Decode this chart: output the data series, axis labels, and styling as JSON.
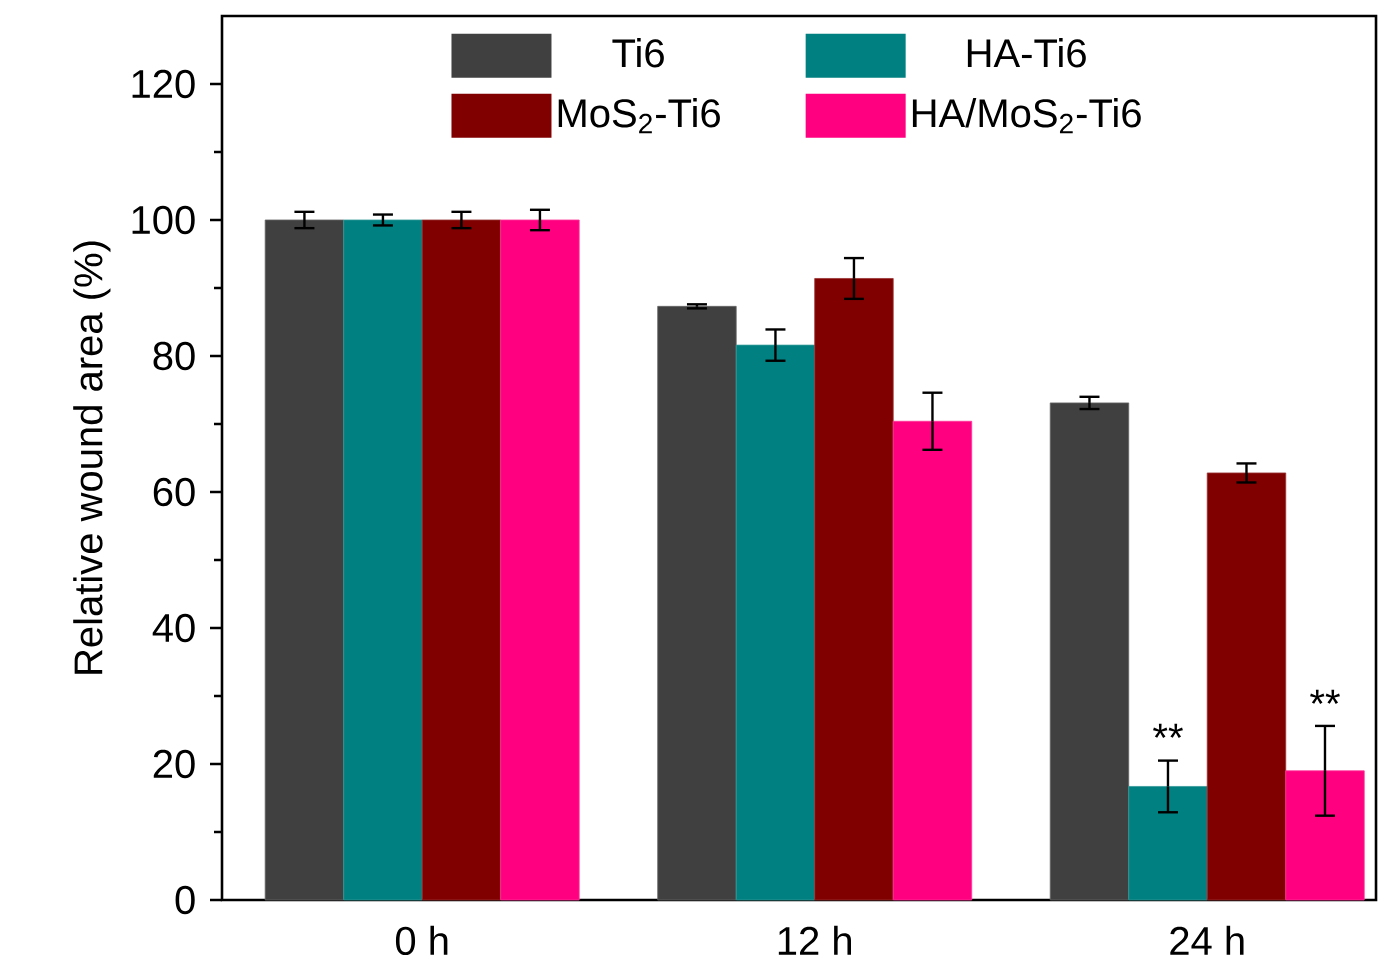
{
  "chart_data": {
    "type": "bar",
    "ylabel": "Relative wound area (%)",
    "categories": [
      "0 h",
      "12 h",
      "24 h"
    ],
    "series": [
      {
        "name": "Ti6",
        "color": "#404040",
        "values": [
          100,
          87.3,
          73.1
        ],
        "errors": [
          1.2,
          0.3,
          0.9
        ]
      },
      {
        "name": "HA-Ti6",
        "color": "#008080",
        "values": [
          100,
          81.6,
          16.7
        ],
        "errors": [
          0.8,
          2.3,
          3.8
        ]
      },
      {
        "name": "MoS$_{2}$-Ti6",
        "color": "#800000",
        "values": [
          100,
          91.4,
          62.8
        ],
        "errors": [
          1.2,
          3.0,
          1.4
        ]
      },
      {
        "name": "HA/MoS$_{2}$-Ti6",
        "color": "#ff0080",
        "values": [
          100,
          70.4,
          19.0
        ],
        "errors": [
          1.5,
          4.2,
          6.6
        ]
      }
    ],
    "ylim": [
      0,
      130
    ],
    "yticks": [
      0,
      20,
      40,
      60,
      80,
      100,
      120
    ],
    "legend": "top",
    "grid": false,
    "annotations": [
      {
        "text": "**",
        "x": "24 h",
        "y": 21.5
      },
      {
        "text": "**",
        "x": "24 h",
        "y": 26.5
      }
    ]
  }
}
